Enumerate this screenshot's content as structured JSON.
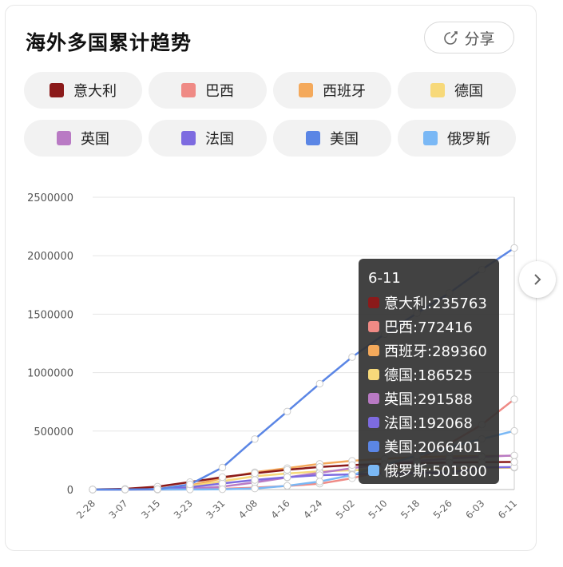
{
  "header": {
    "title": "海外多国累计趋势",
    "share_label": "分享",
    "share_icon": "share-arrow-icon"
  },
  "tooltip": {
    "date": "6-11"
  },
  "next_icon": "chevron-right-icon",
  "chart_data": {
    "type": "line",
    "title": "海外多国累计趋势",
    "xlabel": "",
    "ylabel": "",
    "ylim": [
      0,
      2500000
    ],
    "yticks": [
      "0",
      "500000",
      "1000000",
      "1500000",
      "2000000",
      "2500000"
    ],
    "categories": [
      "2-28",
      "3-07",
      "3-15",
      "3-23",
      "3-31",
      "4-08",
      "4-16",
      "4-24",
      "5-02",
      "5-10",
      "5-18",
      "5-26",
      "6-03",
      "6-11"
    ],
    "grid": true,
    "legend_position": "top",
    "series": [
      {
        "name": "意大利",
        "color": "#8b1a1a",
        "tooltip": "意大利:235763",
        "values": [
          888,
          5883,
          24747,
          63927,
          105792,
          139422,
          168941,
          192994,
          209328,
          219070,
          225886,
          230158,
          233836,
          235763
        ]
      },
      {
        "name": "巴西",
        "color": "#ef8a85",
        "tooltip": "巴西:772416",
        "values": [
          1,
          19,
          200,
          1891,
          5717,
          16170,
          30425,
          50036,
          96559,
          162699,
          254220,
          391222,
          555383,
          772416
        ]
      },
      {
        "name": "西班牙",
        "color": "#f4a95b",
        "tooltip": "西班牙:289360",
        "values": [
          32,
          500,
          7798,
          35136,
          95923,
          148220,
          182816,
          219764,
          245567,
          262783,
          278188,
          283339,
          287012,
          289360
        ]
      },
      {
        "name": "德国",
        "color": "#f7d97a",
        "tooltip": "德国:186525",
        "values": [
          57,
          795,
          5813,
          29056,
          71808,
          113296,
          137439,
          154999,
          164967,
          171324,
          176551,
          180458,
          184121,
          186525
        ]
      },
      {
        "name": "英国",
        "color": "#b97ac4",
        "tooltip": "英国:291588",
        "values": [
          23,
          209,
          1391,
          6650,
          25150,
          60733,
          103093,
          143464,
          182260,
          219183,
          243303,
          265227,
          279856,
          291588
        ]
      },
      {
        "name": "法国",
        "color": "#7d6be0",
        "tooltip": "法国:192068",
        "values": [
          57,
          949,
          5423,
          19856,
          52128,
          82048,
          106206,
          122875,
          130185,
          138161,
          142411,
          145555,
          189220,
          192068
        ]
      },
      {
        "name": "美国",
        "color": "#5b86e5",
        "tooltip": "美国:2066401",
        "values": [
          62,
          402,
          3499,
          43663,
          188172,
          431838,
          667572,
          905358,
          1133069,
          1329260,
          1508308,
          1681212,
          1881205,
          2066401
        ]
      },
      {
        "name": "俄罗斯",
        "color": "#7ab8f5",
        "tooltip": "俄罗斯:501800",
        "values": [
          0,
          4,
          63,
          495,
          2337,
          8672,
          32008,
          68622,
          124054,
          209688,
          290678,
          362342,
          432277,
          501800
        ]
      }
    ]
  }
}
